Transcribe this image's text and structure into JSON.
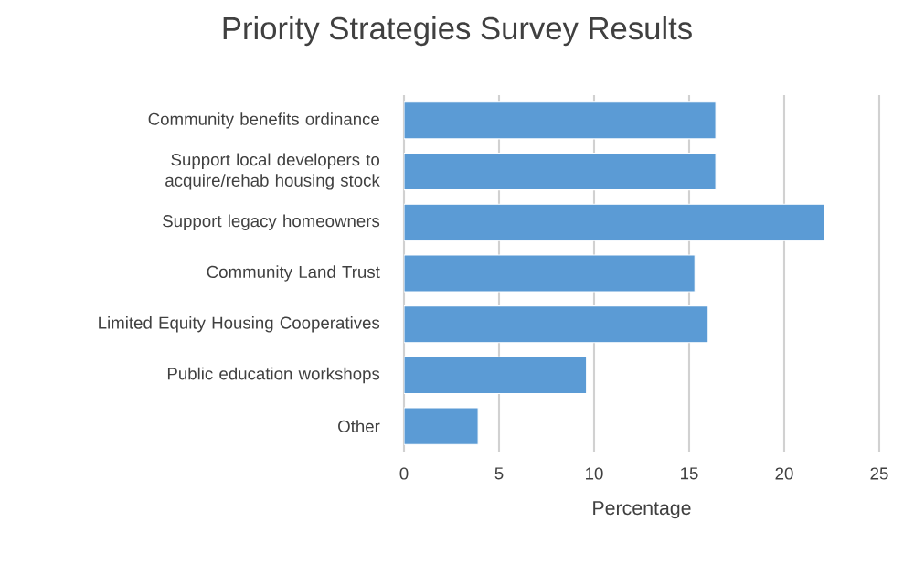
{
  "chart_data": {
    "type": "bar",
    "orientation": "horizontal",
    "title": "Priority Strategies Survey Results",
    "xlabel": "Percentage",
    "categories": [
      "Community benefits ordinance",
      "Support local developers to acquire/rehab housing stock",
      "Support legacy homeowners",
      "Community Land Trust",
      "Limited Equity Housing Cooperatives",
      "Public education workshops",
      "Other"
    ],
    "values": [
      16.4,
      16.4,
      22.1,
      15.3,
      16.0,
      9.6,
      3.9
    ],
    "color": "#5b9bd5",
    "xlim": [
      0,
      25
    ],
    "xticks": [
      0,
      5,
      10,
      15,
      20,
      25
    ],
    "grid": "x"
  }
}
